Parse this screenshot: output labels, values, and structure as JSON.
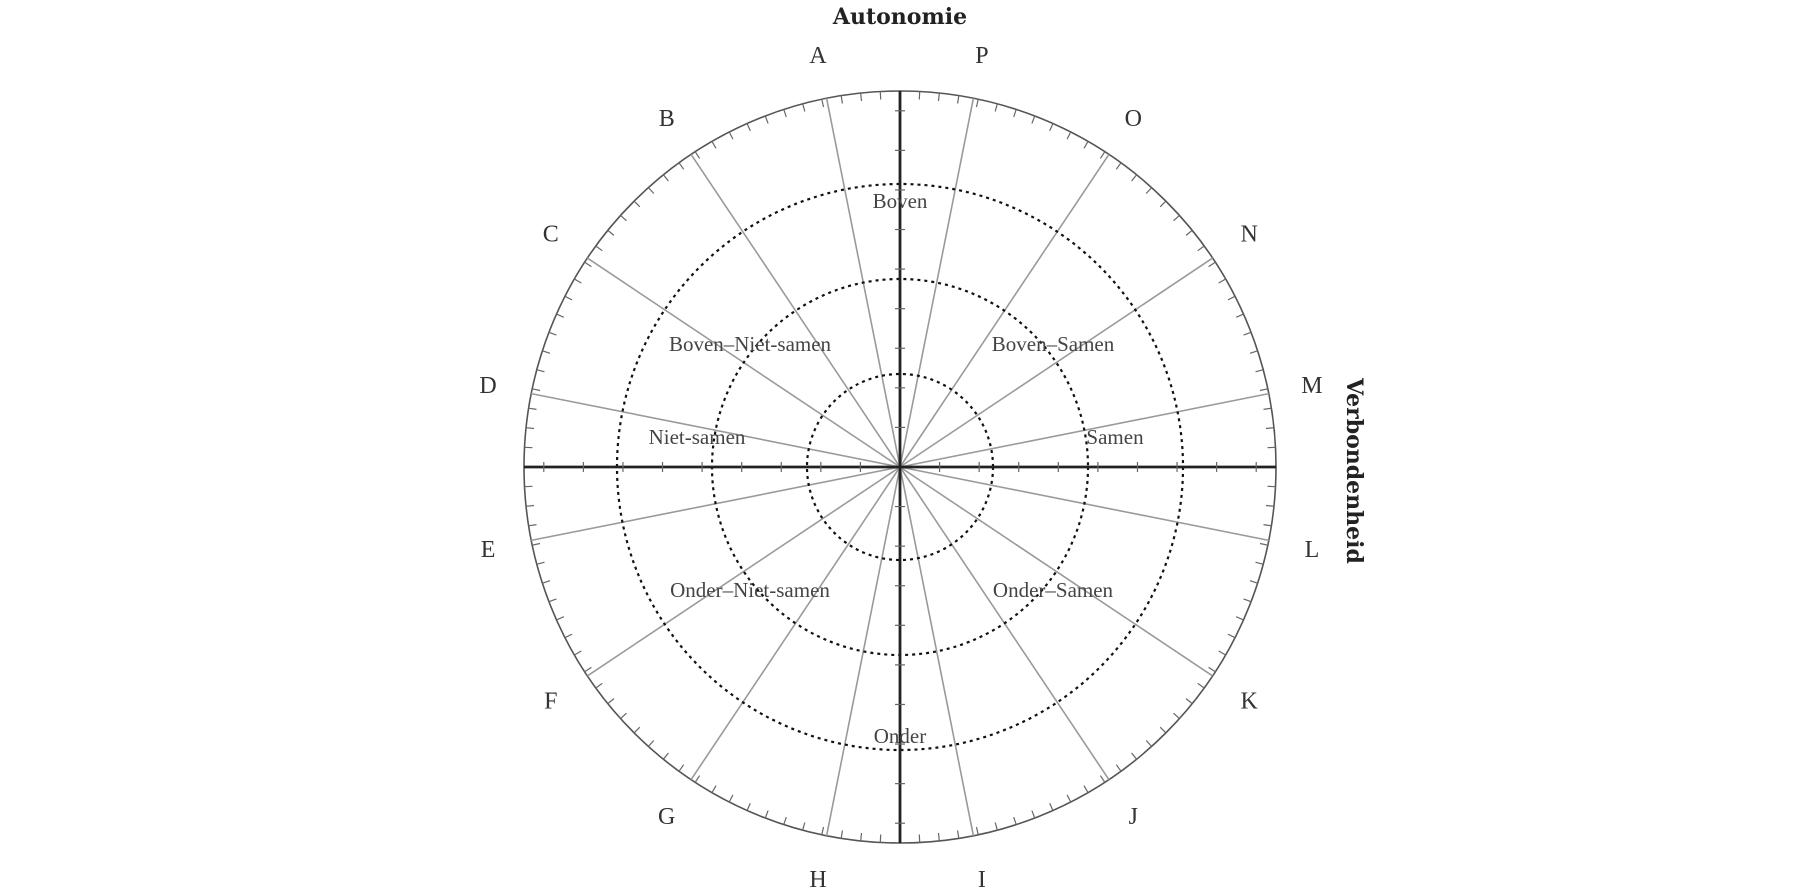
{
  "titles": {
    "top": "Autonomie",
    "right": "Verbondenheid"
  },
  "sector_letters": [
    "A",
    "P",
    "O",
    "N",
    "M",
    "L",
    "K",
    "J",
    "I",
    "H",
    "G",
    "F",
    "E",
    "D",
    "C",
    "B"
  ],
  "regions": {
    "top": "Boven",
    "top_left": "Boven–Niet-samen",
    "top_right": "Boven–Samen",
    "left": "Niet-samen",
    "right": "Samen",
    "bottom_left": "Onder–Niet-samen",
    "bottom_right": "Onder–Samen",
    "bottom": "Onder"
  },
  "diagram": {
    "spoke_count": 16,
    "dotted_ring_count": 3,
    "ticks_per_axis_half": 9
  }
}
